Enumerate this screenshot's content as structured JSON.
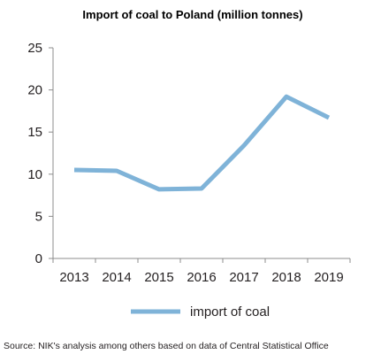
{
  "chart_data": {
    "type": "line",
    "title": "Import of coal to Poland (million tonnes)",
    "x": [
      "2013",
      "2014",
      "2015",
      "2016",
      "2017",
      "2018",
      "2019"
    ],
    "series": [
      {
        "name": "import of coal",
        "values": [
          10.5,
          10.4,
          8.2,
          8.3,
          13.4,
          19.2,
          16.7
        ],
        "color": "#7fb3d8"
      }
    ],
    "ylim": [
      0,
      25
    ],
    "yticks": [
      "0",
      "5",
      "10",
      "15",
      "20",
      "25"
    ],
    "grid": false,
    "legend_position": "bottom"
  },
  "source": "Source: NIK's analysis among others based on data of Central Statistical Office"
}
